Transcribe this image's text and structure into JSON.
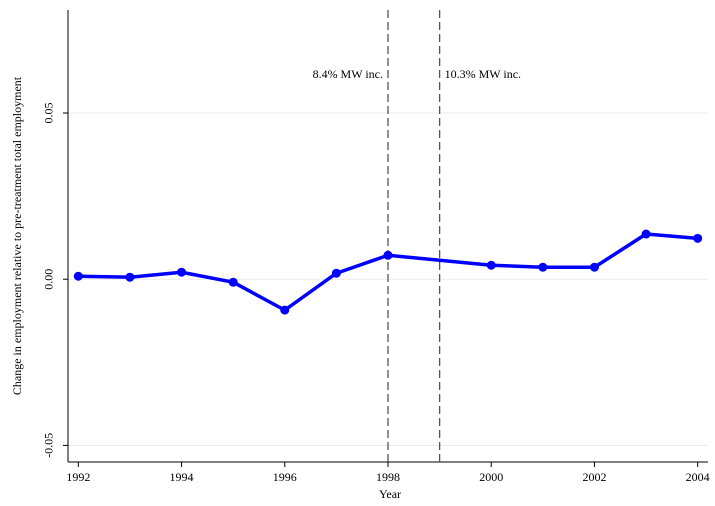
{
  "chart_data": {
    "type": "line",
    "x": [
      1992,
      1993,
      1994,
      1995,
      1996,
      1997,
      1998,
      2000,
      2001,
      2002,
      2003,
      2004
    ],
    "series": [
      {
        "color": "#0000ff",
        "values": [
          0.0009,
          0.0006,
          0.0021,
          -0.0009,
          -0.0093,
          0.0018,
          0.0072,
          0.0042,
          0.0036,
          0.0036,
          0.0136,
          0.0123
        ]
      }
    ],
    "xlabel": "Year",
    "ylabel": "Change in employment relative to pre-treatment total employment",
    "xlim": [
      1991.8,
      2004.2
    ],
    "xticks": [
      1992,
      1994,
      1996,
      1998,
      2000,
      2002,
      2004
    ],
    "ylim": [
      -0.055,
      0.081
    ],
    "yticks": [
      -0.05,
      {
        "value": 0,
        "label": "0.00"
      },
      0.05
    ],
    "grid": true,
    "vlines": [
      {
        "x": 1998,
        "label": "8.4% MW inc."
      },
      {
        "x": 1999,
        "label": "10.3% MW inc."
      }
    ]
  }
}
